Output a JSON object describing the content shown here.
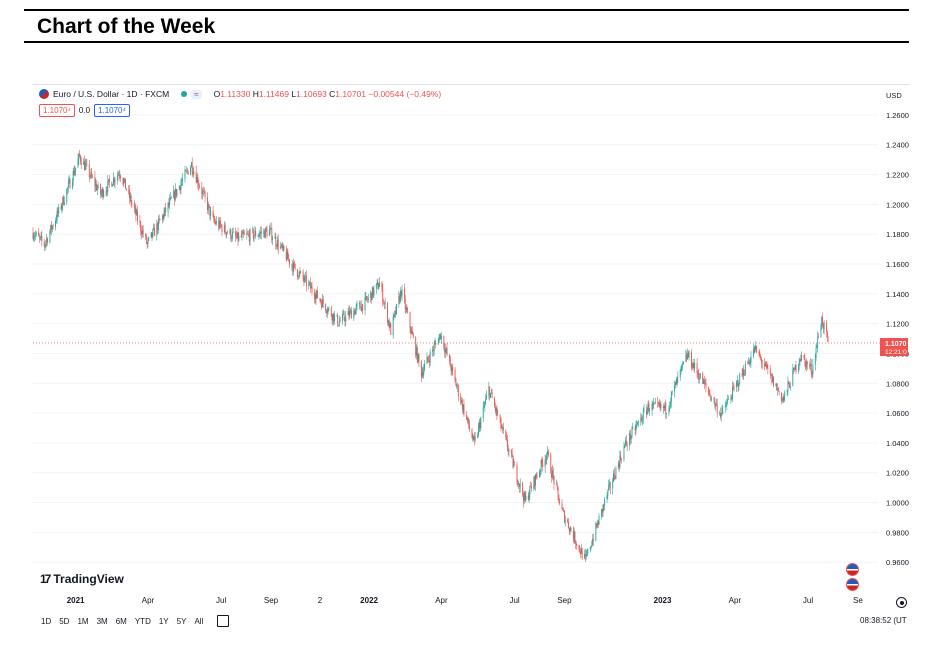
{
  "page": {
    "title": "Chart of the Week"
  },
  "header": {
    "symbol": "Euro / U.S. Dollar · 1D · FXCM",
    "open_label": "O",
    "open": "1.11330",
    "high_label": "H",
    "high": "1.11469",
    "low_label": "L",
    "low": "1.10693",
    "close_label": "C",
    "close": "1.10701",
    "change": "−0.00544 (−0.49%)",
    "sell_price": "1.1070⁴",
    "spread": "0.0",
    "buy_price": "1.1070⁴"
  },
  "axis": {
    "currency": "USD"
  },
  "last_price": {
    "value": "1.1070",
    "countdown": "12:21:0"
  },
  "brand": {
    "name": "TradingView"
  },
  "toolbar": {
    "ranges": [
      "1D",
      "5D",
      "1M",
      "3M",
      "6M",
      "YTD",
      "1Y",
      "5Y",
      "All"
    ]
  },
  "time_readout": "08:38:52 (UT",
  "colors": {
    "up": "#26a69a",
    "down": "#ef5350",
    "grid": "#f0f3fa",
    "axis_text": "#131722"
  },
  "chart_data": {
    "type": "candlestick",
    "title": "",
    "symbol": "EURUSD",
    "interval": "1D",
    "ylim": [
      0.94,
      1.27
    ],
    "y_ticks": [
      "1.2600",
      "1.2400",
      "1.2200",
      "1.2000",
      "1.1800",
      "1.1600",
      "1.1400",
      "1.1200",
      "1.1000",
      "1.0800",
      "1.0600",
      "1.0400",
      "1.0200",
      "1.0000",
      "0.9800",
      "0.9600"
    ],
    "x_ticks": [
      "2021",
      "Apr",
      "Jul",
      "Sep",
      "2",
      "2022",
      "Apr",
      "Jul",
      "Sep",
      "2023",
      "Apr",
      "Jul",
      "Se"
    ],
    "grid": true,
    "last_close": 1.107,
    "price_path": [
      {
        "date": "2020-11-09",
        "close": 1.181
      },
      {
        "date": "2020-11-23",
        "close": 1.173
      },
      {
        "date": "2020-12-14",
        "close": 1.199
      },
      {
        "date": "2021-01-06",
        "close": 1.232
      },
      {
        "date": "2021-02-01",
        "close": 1.207
      },
      {
        "date": "2021-02-25",
        "close": 1.222
      },
      {
        "date": "2021-03-31",
        "close": 1.173
      },
      {
        "date": "2021-05-25",
        "close": 1.227
      },
      {
        "date": "2021-06-21",
        "close": 1.189
      },
      {
        "date": "2021-07-20",
        "close": 1.177
      },
      {
        "date": "2021-08-30",
        "close": 1.182
      },
      {
        "date": "2021-09-29",
        "close": 1.158
      },
      {
        "date": "2021-11-24",
        "close": 1.121
      },
      {
        "date": "2021-12-27",
        "close": 1.134
      },
      {
        "date": "2022-01-14",
        "close": 1.147
      },
      {
        "date": "2022-01-28",
        "close": 1.115
      },
      {
        "date": "2022-02-10",
        "close": 1.142
      },
      {
        "date": "2022-03-07",
        "close": 1.087
      },
      {
        "date": "2022-03-31",
        "close": 1.113
      },
      {
        "date": "2022-05-12",
        "close": 1.039
      },
      {
        "date": "2022-05-30",
        "close": 1.076
      },
      {
        "date": "2022-07-14",
        "close": 1.001
      },
      {
        "date": "2022-08-10",
        "close": 1.033
      },
      {
        "date": "2022-08-29",
        "close": 0.994
      },
      {
        "date": "2022-09-27",
        "close": 0.961
      },
      {
        "date": "2022-10-26",
        "close": 1.008
      },
      {
        "date": "2022-11-15",
        "close": 1.038
      },
      {
        "date": "2022-12-14",
        "close": 1.064
      },
      {
        "date": "2023-01-06",
        "close": 1.063
      },
      {
        "date": "2023-02-01",
        "close": 1.099
      },
      {
        "date": "2023-03-15",
        "close": 1.059
      },
      {
        "date": "2023-04-26",
        "close": 1.103
      },
      {
        "date": "2023-05-31",
        "close": 1.069
      },
      {
        "date": "2023-06-21",
        "close": 1.098
      },
      {
        "date": "2023-07-06",
        "close": 1.089
      },
      {
        "date": "2023-07-18",
        "close": 1.123
      },
      {
        "date": "2023-07-26",
        "close": 1.107
      }
    ]
  }
}
